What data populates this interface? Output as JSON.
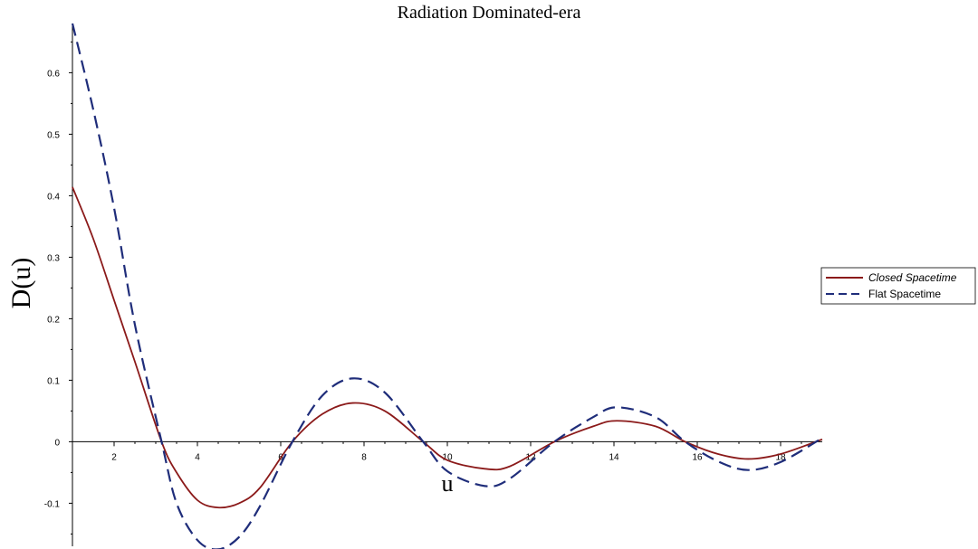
{
  "chart_data": {
    "type": "line",
    "title": "Radiation Dominated-era",
    "xlabel": "u",
    "ylabel": "D(u)",
    "xlim": [
      1,
      19
    ],
    "ylim": [
      -0.17,
      0.68
    ],
    "xticks": [
      2,
      4,
      6,
      8,
      10,
      12,
      14,
      16,
      18
    ],
    "yticks": [
      -0.1,
      0,
      0.1,
      0.2,
      0.3,
      0.4,
      0.5,
      0.6
    ],
    "xtick_labels": [
      "2",
      "4",
      "6",
      "8",
      "10",
      "12",
      "14",
      "16",
      "18"
    ],
    "ytick_labels": [
      "-0.1",
      "0",
      "0.1",
      "0.2",
      "0.3",
      "0.4",
      "0.5",
      "0.6"
    ],
    "grid": false,
    "legend_position": "right",
    "series": [
      {
        "name": "Closed Spacetime",
        "color": "#8b1a1a",
        "dash": "solid",
        "x": [
          1,
          1.5,
          2,
          2.5,
          3.14,
          3.5,
          4,
          4.49,
          5,
          5.5,
          6.28,
          7,
          7.73,
          8.5,
          9.42,
          10,
          10.9,
          11.5,
          12.57,
          13.5,
          14.07,
          15,
          15.71,
          16.5,
          17.22,
          18,
          19
        ],
        "y": [
          0.414,
          0.33,
          0.23,
          0.13,
          0,
          -0.05,
          -0.095,
          -0.107,
          -0.1,
          -0.075,
          0,
          0.045,
          0.063,
          0.05,
          0,
          -0.03,
          -0.044,
          -0.04,
          0,
          0.025,
          0.034,
          0.025,
          0,
          -0.02,
          -0.028,
          -0.02,
          0.004
        ]
      },
      {
        "name": "Flat Spacetime",
        "color": "#1f2d7a",
        "dash": "dashed",
        "x": [
          1,
          1.5,
          2,
          2.5,
          3.14,
          3.5,
          4,
          4.49,
          5,
          5.5,
          6.28,
          7,
          7.73,
          8.5,
          9.42,
          10,
          10.9,
          11.5,
          12.57,
          13.5,
          14.07,
          15,
          15.71,
          16.5,
          17.22,
          18,
          19
        ],
        "y": [
          0.68,
          0.54,
          0.38,
          0.19,
          0,
          -0.1,
          -0.16,
          -0.175,
          -0.155,
          -0.105,
          0,
          0.075,
          0.103,
          0.08,
          0,
          -0.048,
          -0.072,
          -0.06,
          0,
          0.04,
          0.056,
          0.04,
          0,
          -0.032,
          -0.046,
          -0.033,
          0.006
        ]
      }
    ]
  }
}
